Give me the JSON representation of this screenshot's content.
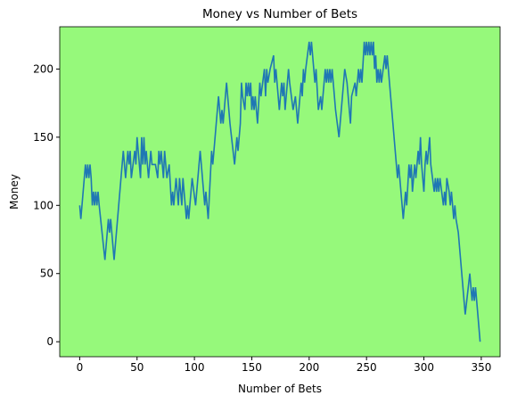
{
  "chart_data": {
    "type": "line",
    "title": "Money vs Number of Bets",
    "x_label": "Number of Bets",
    "y_label": "Money",
    "background": "#96f97b",
    "x": [
      0,
      1,
      5,
      6,
      7,
      8,
      9,
      10,
      11,
      12,
      13,
      14,
      15,
      16,
      17,
      22,
      25,
      26,
      27,
      30,
      38,
      40,
      42,
      43,
      44,
      45,
      48,
      49,
      50,
      51,
      53,
      54,
      55,
      56,
      57,
      58,
      60,
      62,
      63,
      66,
      68,
      69,
      70,
      71,
      73,
      74,
      76,
      78,
      80,
      81,
      82,
      84,
      85,
      86,
      87,
      89,
      90,
      92,
      93,
      94,
      95,
      96,
      98,
      101,
      105,
      108,
      109,
      110,
      112,
      115,
      116,
      120,
      121,
      123,
      124,
      125,
      128,
      131,
      135,
      137,
      138,
      140,
      141,
      142,
      144,
      145,
      146,
      147,
      148,
      149,
      150,
      151,
      152,
      153,
      155,
      157,
      158,
      161,
      162,
      163,
      164,
      166,
      169,
      170,
      171,
      172,
      174,
      176,
      177,
      178,
      179,
      182,
      183,
      186,
      188,
      190,
      193,
      194,
      195,
      196,
      197,
      200,
      201,
      202,
      205,
      206,
      208,
      210,
      211,
      214,
      215,
      216,
      217,
      218,
      219,
      220,
      222,
      223,
      226,
      231,
      233,
      236,
      237,
      240,
      241,
      243,
      244,
      245,
      246,
      248,
      249,
      250,
      251,
      252,
      253,
      254,
      255,
      256,
      257,
      258,
      259,
      260,
      261,
      262,
      263,
      266,
      267,
      268,
      273,
      276,
      277,
      278,
      282,
      284,
      285,
      287,
      288,
      289,
      290,
      292,
      293,
      295,
      296,
      297,
      298,
      300,
      301,
      302,
      303,
      305,
      306,
      309,
      310,
      311,
      312,
      313,
      314,
      317,
      318,
      319,
      320,
      322,
      323,
      324,
      326,
      327,
      328,
      330,
      336,
      340,
      342,
      343,
      344,
      345,
      349
    ],
    "series": [
      {
        "name": "Money",
        "color": "#1f77b4",
        "values": [
          100,
          90,
          130,
          120,
          130,
          120,
          130,
          120,
          100,
          110,
          100,
          110,
          100,
          110,
          100,
          60,
          90,
          80,
          90,
          60,
          140,
          120,
          140,
          130,
          140,
          120,
          140,
          130,
          150,
          140,
          120,
          150,
          130,
          150,
          130,
          140,
          120,
          140,
          130,
          130,
          120,
          140,
          130,
          140,
          120,
          140,
          120,
          130,
          100,
          110,
          100,
          120,
          110,
          100,
          120,
          100,
          120,
          100,
          90,
          100,
          90,
          100,
          120,
          100,
          140,
          110,
          100,
          110,
          90,
          140,
          130,
          170,
          180,
          160,
          170,
          160,
          190,
          160,
          130,
          150,
          140,
          160,
          190,
          180,
          170,
          190,
          180,
          190,
          180,
          190,
          170,
          180,
          170,
          180,
          160,
          190,
          180,
          200,
          180,
          200,
          190,
          200,
          210,
          190,
          200,
          190,
          170,
          190,
          180,
          190,
          170,
          200,
          190,
          170,
          180,
          160,
          190,
          180,
          200,
          190,
          200,
          220,
          210,
          220,
          190,
          200,
          170,
          180,
          170,
          200,
          190,
          200,
          190,
          200,
          190,
          200,
          180,
          170,
          150,
          200,
          190,
          160,
          180,
          190,
          180,
          200,
          190,
          200,
          190,
          220,
          210,
          220,
          210,
          220,
          210,
          220,
          210,
          220,
          200,
          210,
          190,
          200,
          190,
          200,
          190,
          210,
          200,
          210,
          160,
          130,
          120,
          130,
          90,
          110,
          100,
          130,
          120,
          130,
          110,
          130,
          120,
          140,
          130,
          150,
          130,
          110,
          130,
          140,
          130,
          150,
          130,
          110,
          120,
          110,
          120,
          110,
          120,
          100,
          110,
          100,
          120,
          110,
          100,
          110,
          90,
          100,
          90,
          80,
          20,
          50,
          30,
          40,
          30,
          40,
          0
        ]
      }
    ],
    "xlim": [
      -17.4,
      366.4
    ],
    "ylim": [
      -11,
      231
    ],
    "xticks": [
      0,
      50,
      100,
      150,
      200,
      250,
      300,
      350
    ],
    "yticks": [
      0,
      50,
      100,
      150,
      200
    ]
  }
}
